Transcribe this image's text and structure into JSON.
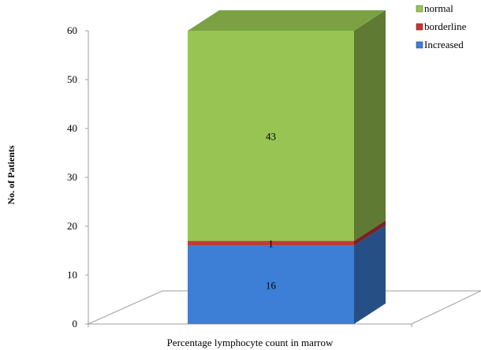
{
  "chart_data": {
    "type": "bar",
    "stacked": true,
    "three_d": true,
    "title": "",
    "xlabel": "Percentage lymphocyte count in marrow",
    "ylabel": "No. of Patients",
    "ylim": [
      0,
      60
    ],
    "yticks": [
      0,
      10,
      20,
      30,
      40,
      50,
      60
    ],
    "categories": [
      ""
    ],
    "series": [
      {
        "name": "Increased",
        "values": [
          16
        ],
        "color": "#3d7fd6",
        "label": "16"
      },
      {
        "name": "borderline",
        "values": [
          1
        ],
        "color": "#c0393b",
        "label": "1"
      },
      {
        "name": "normal",
        "values": [
          43
        ],
        "color": "#97c452",
        "label": "43"
      }
    ],
    "legend_order": [
      "normal",
      "borderline",
      "Increased"
    ],
    "legend_position": "top-right",
    "grid": false
  }
}
